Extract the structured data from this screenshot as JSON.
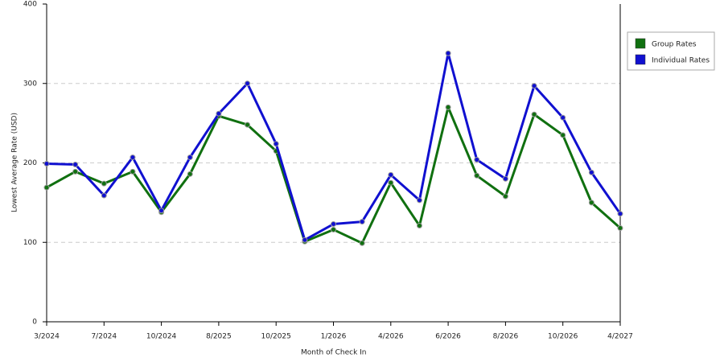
{
  "chart_data": {
    "type": "line",
    "x_label": "Month of Check In",
    "y_label": "Lowest Average Rate (USD)",
    "categories": [
      "3/2024",
      null,
      "7/2024",
      null,
      "10/2024",
      null,
      "8/2025",
      null,
      "10/2025",
      null,
      "1/2026",
      null,
      "4/2026",
      null,
      "6/2026",
      null,
      "8/2026",
      null,
      "10/2026",
      null,
      "4/2027"
    ],
    "series": [
      {
        "name": "Group Rates",
        "color": "#107010",
        "values": [
          169,
          189,
          174,
          189,
          138,
          186,
          259,
          248,
          215,
          101,
          116,
          99,
          175,
          121,
          270,
          184,
          158,
          261,
          235,
          150,
          118
        ]
      },
      {
        "name": "Individual Rates",
        "color": "#1010d0",
        "values": [
          199,
          198,
          159,
          207,
          140,
          207,
          262,
          300,
          224,
          103,
          123,
          126,
          185,
          153,
          338,
          204,
          180,
          297,
          257,
          188,
          136
        ]
      }
    ],
    "ylim": [
      0,
      400
    ],
    "yticks": [
      0,
      100,
      200,
      300,
      400
    ],
    "grid": true,
    "legend": "right"
  }
}
